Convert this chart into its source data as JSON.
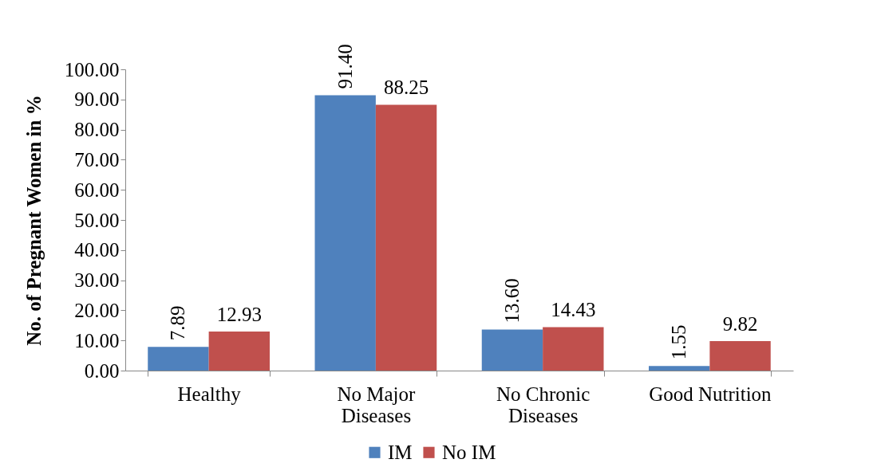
{
  "chart_data": {
    "type": "bar",
    "ylabel": "No. of Pregnant Women in %",
    "categories": [
      "Healthy",
      "No Major Diseases",
      "No Chronic Diseases",
      "Good Nutrition"
    ],
    "series": [
      {
        "name": "IM",
        "color": "#4f81bd",
        "values": [
          7.89,
          91.4,
          13.6,
          1.55
        ],
        "value_labels": [
          "7.89",
          "91.40",
          "13.60",
          "1.55"
        ]
      },
      {
        "name": "No IM",
        "color": "#c0504d",
        "values": [
          12.93,
          88.25,
          14.43,
          9.82
        ],
        "value_labels": [
          "12.93",
          "88.25",
          "14.43",
          "9.82"
        ]
      }
    ],
    "ylim": [
      0,
      100
    ],
    "yticks": [
      {
        "value": 0,
        "label": "0.00"
      },
      {
        "value": 10,
        "label": "10.00"
      },
      {
        "value": 20,
        "label": "20.00"
      },
      {
        "value": 30,
        "label": "30.00"
      },
      {
        "value": 40,
        "label": "40.00"
      },
      {
        "value": 50,
        "label": "50.00"
      },
      {
        "value": 60,
        "label": "60.00"
      },
      {
        "value": 70,
        "label": "70.00"
      },
      {
        "value": 80,
        "label": "80.00"
      },
      {
        "value": 90,
        "label": "90.00"
      },
      {
        "value": 100,
        "label": "100.00"
      }
    ],
    "data_labels": true,
    "legend": "bottom",
    "grid": false
  }
}
